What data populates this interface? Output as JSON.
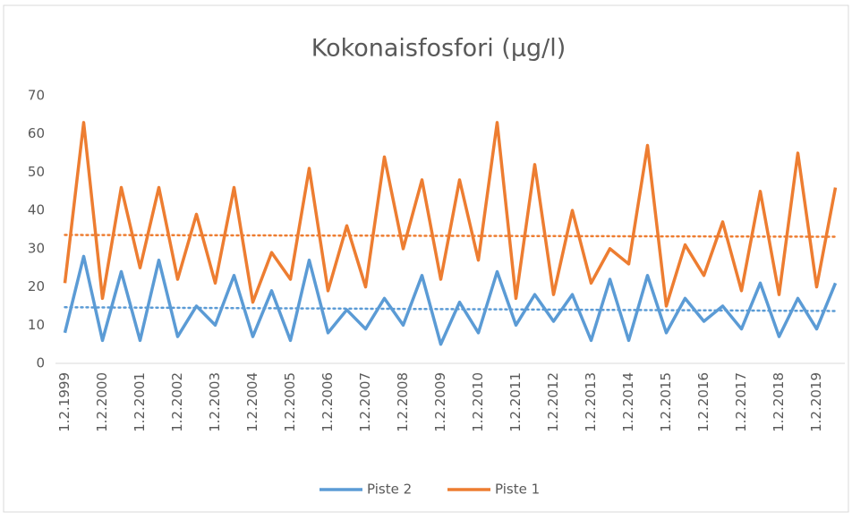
{
  "chart_data": {
    "type": "line",
    "title": "Kokonaisfosfori (µg/l)",
    "categories": [
      "1.2.1999",
      null,
      "1.2.2000",
      null,
      "1.2.2001",
      null,
      "1.2.2002",
      null,
      "1.2.2003",
      null,
      "1.2.2004",
      null,
      "1.2.2005",
      null,
      "1.2.2006",
      null,
      "1.2.2007",
      null,
      "1.2.2008",
      null,
      "1.2.2009",
      null,
      "1.2.2010",
      null,
      "1.2.2011",
      null,
      "1.2.2012",
      null,
      "1.2.2013",
      null,
      "1.2.2014",
      null,
      "1.2.2015",
      null,
      "1.2.2016",
      null,
      "1.2.2017",
      null,
      "1.2.2018",
      null,
      "1.2.2019",
      null
    ],
    "series": [
      {
        "name": "Piste 2",
        "color": "#5b9bd5",
        "values": [
          8,
          28,
          6,
          24,
          6,
          27,
          7,
          15,
          10,
          23,
          7,
          19,
          6,
          27,
          8,
          14,
          9,
          17,
          10,
          23,
          5,
          16,
          8,
          24,
          10,
          18,
          11,
          18,
          6,
          22,
          6,
          23,
          8,
          17,
          11,
          15,
          9,
          21,
          7,
          17,
          9,
          21
        ]
      },
      {
        "name": "Piste 1",
        "color": "#ed7d31",
        "values": [
          21,
          63,
          17,
          46,
          25,
          46,
          22,
          39,
          21,
          46,
          16,
          29,
          22,
          51,
          19,
          36,
          20,
          54,
          30,
          48,
          22,
          48,
          27,
          63,
          17,
          52,
          18,
          40,
          21,
          30,
          26,
          57,
          15,
          31,
          23,
          37,
          19,
          45,
          18,
          55,
          20,
          46
        ]
      }
    ],
    "ylim": [
      0,
      70
    ],
    "yticks": [
      0,
      10,
      20,
      30,
      40,
      50,
      60,
      70
    ],
    "grid": false,
    "trendline": true,
    "legend": "bottom"
  }
}
